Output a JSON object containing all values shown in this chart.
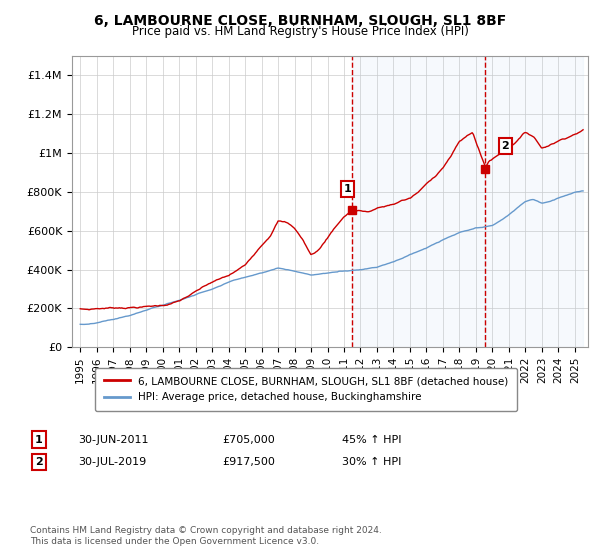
{
  "title": "6, LAMBOURNE CLOSE, BURNHAM, SLOUGH, SL1 8BF",
  "subtitle": "Price paid vs. HM Land Registry's House Price Index (HPI)",
  "legend_line1": "6, LAMBOURNE CLOSE, BURNHAM, SLOUGH, SL1 8BF (detached house)",
  "legend_line2": "HPI: Average price, detached house, Buckinghamshire",
  "footnote": "Contains HM Land Registry data © Crown copyright and database right 2024.\nThis data is licensed under the Open Government Licence v3.0.",
  "transaction1_label": "1",
  "transaction1_date": "30-JUN-2011",
  "transaction1_price": "£705,000",
  "transaction1_hpi": "45% ↑ HPI",
  "transaction2_label": "2",
  "transaction2_date": "30-JUL-2019",
  "transaction2_price": "£917,500",
  "transaction2_hpi": "30% ↑ HPI",
  "property_color": "#cc0000",
  "hpi_color": "#6699cc",
  "ylim": [
    0,
    1500000
  ],
  "yticks": [
    0,
    200000,
    400000,
    600000,
    800000,
    1000000,
    1200000,
    1400000
  ],
  "ytick_labels": [
    "£0",
    "£200K",
    "£400K",
    "£600K",
    "£800K",
    "£1M",
    "£1.2M",
    "£1.4M"
  ],
  "transaction1_x": 2011.5,
  "transaction1_y": 705000,
  "transaction2_x": 2019.58,
  "transaction2_y": 917500,
  "vline1_x": 2011.5,
  "vline2_x": 2019.58,
  "shade1_x_start": 2011.5,
  "shade1_x_end": 2019.58,
  "shade2_x_start": 2019.58,
  "shade2_x_end": 2025.5,
  "xmin": 1994.5,
  "xmax": 2025.8
}
